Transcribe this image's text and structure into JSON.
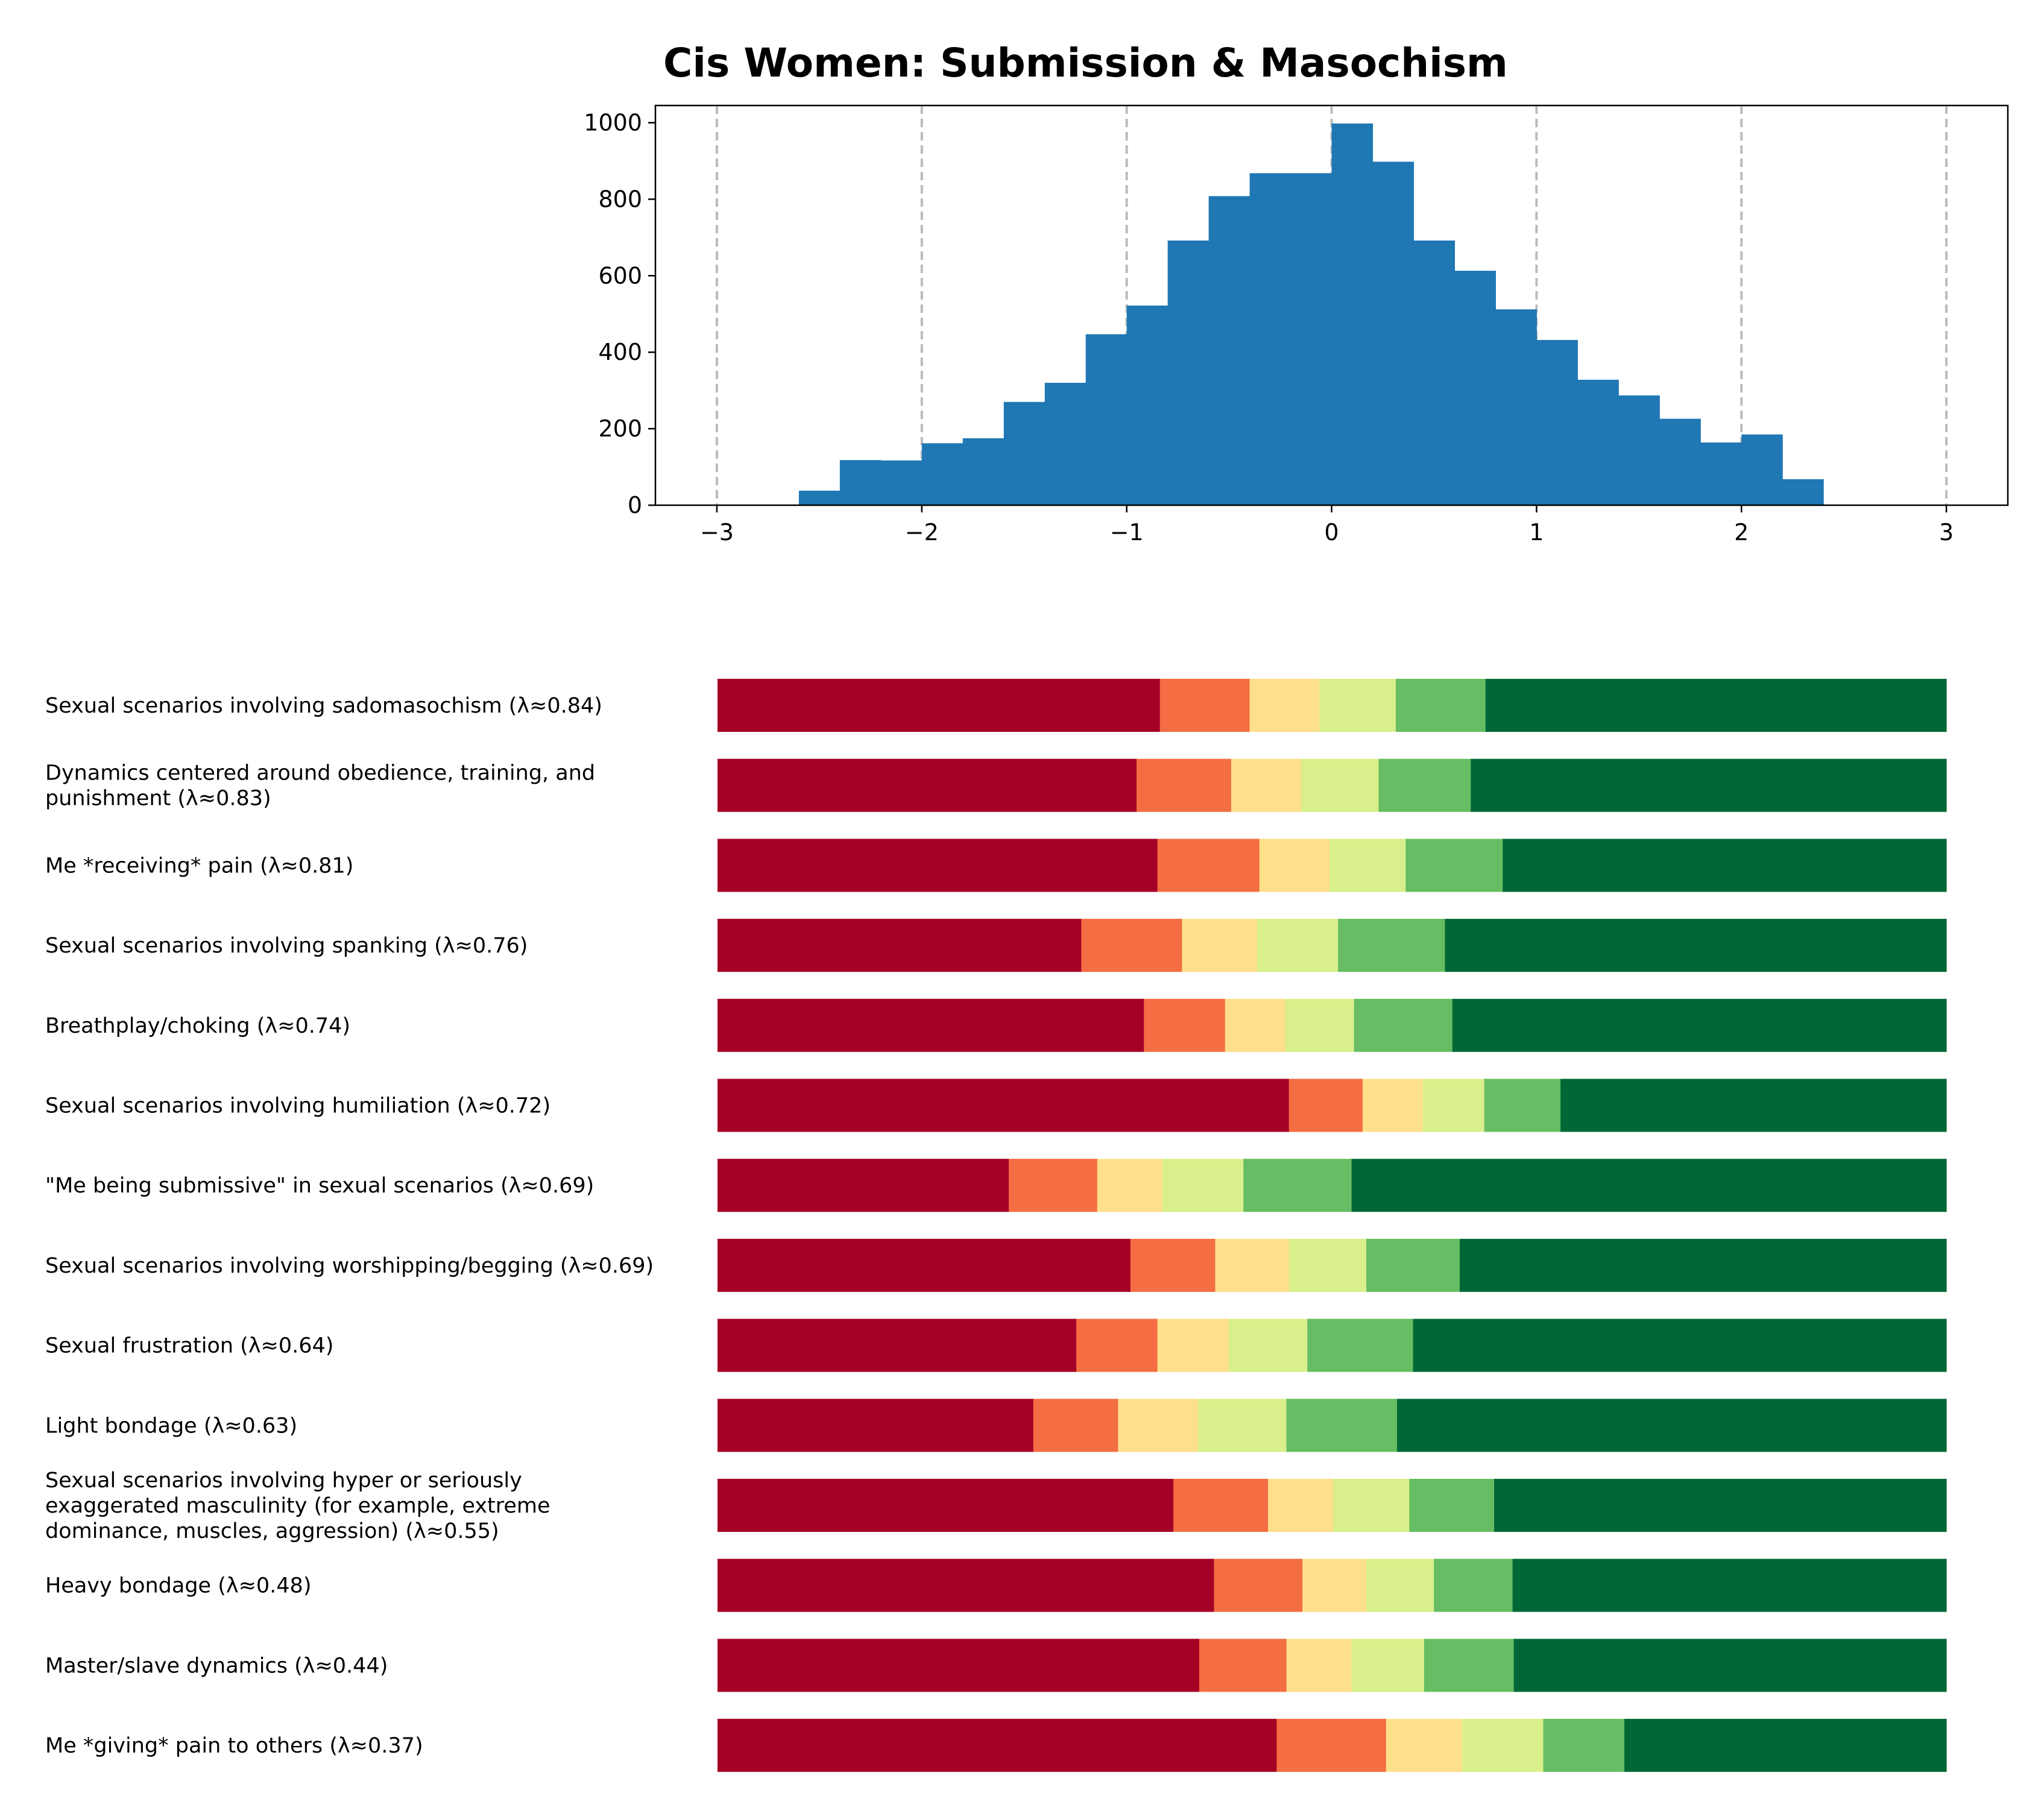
{
  "chart_data": [
    {
      "type": "bar",
      "title": "Cis Women: Submission & Masochism",
      "xlabel": "",
      "ylabel": "",
      "xlim": [
        -3.3,
        3.3
      ],
      "ylim": [
        0,
        1045
      ],
      "xticks": [
        -3,
        -2,
        -1,
        0,
        1,
        2,
        3
      ],
      "xtick_labels": [
        "−3",
        "−2",
        "−1",
        "0",
        "1",
        "2",
        "3"
      ],
      "yticks": [
        0,
        200,
        400,
        600,
        800,
        1000
      ],
      "ytick_labels": [
        "0",
        "200",
        "400",
        "600",
        "800",
        "1000"
      ],
      "grid": "vertical dashed at integer x",
      "bin_width": 0.2,
      "bin_starts": [
        -2.6,
        -2.4,
        -2.2,
        -2.0,
        -1.8,
        -1.6,
        -1.4,
        -1.2,
        -1.0,
        -0.8,
        -0.6,
        -0.4,
        -0.2,
        0.0,
        0.2,
        0.4,
        0.6,
        0.8,
        1.0,
        1.2,
        1.4,
        1.6,
        1.8,
        2.0,
        2.2
      ],
      "values": [
        38,
        118,
        117,
        162,
        175,
        270,
        320,
        447,
        522,
        692,
        808,
        868,
        868,
        998,
        898,
        692,
        613,
        512,
        432,
        328,
        287,
        226,
        164,
        185,
        68
      ],
      "colors": {
        "bar": "#1f77b4",
        "grid": "#bbbbbb"
      }
    },
    {
      "type": "bar",
      "orientation": "horizontal",
      "stacked": true,
      "normalized": true,
      "categories": [
        "Sexual scenarios involving sadomasochism (λ≈0.84)",
        "Dynamics centered around obedience, training, and\npunishment (λ≈0.83)",
        "Me *receiving* pain (λ≈0.81)",
        "Sexual scenarios involving spanking (λ≈0.76)",
        "Breathplay/choking (λ≈0.74)",
        "Sexual scenarios involving humiliation (λ≈0.72)",
        "\"Me being submissive\" in sexual scenarios (λ≈0.69)",
        "Sexual scenarios involving worshipping/begging (λ≈0.69)",
        "Sexual frustration (λ≈0.64)",
        "Light bondage (λ≈0.63)",
        "Sexual scenarios involving hyper or seriously\nexaggerated masculinity (for example, extreme\ndominance, muscles, aggression) (λ≈0.55)",
        "Heavy bondage (λ≈0.48)",
        "Master/slave dynamics (λ≈0.44)",
        "Me *giving* pain to others (λ≈0.37)"
      ],
      "segment_colors": [
        "#a50026",
        "#f46d43",
        "#fee08b",
        "#d9ef8b",
        "#66bd63",
        "#006837"
      ],
      "shares": [
        [
          0.36,
          0.073,
          0.057,
          0.062,
          0.073,
          0.375
        ],
        [
          0.341,
          0.077,
          0.057,
          0.063,
          0.075,
          0.387
        ],
        [
          0.358,
          0.083,
          0.057,
          0.062,
          0.079,
          0.361
        ],
        [
          0.296,
          0.082,
          0.061,
          0.066,
          0.087,
          0.408
        ],
        [
          0.347,
          0.066,
          0.049,
          0.056,
          0.08,
          0.402
        ],
        [
          0.465,
          0.06,
          0.049,
          0.05,
          0.062,
          0.314
        ],
        [
          0.237,
          0.072,
          0.053,
          0.066,
          0.088,
          0.484
        ],
        [
          0.336,
          0.069,
          0.06,
          0.063,
          0.076,
          0.396
        ],
        [
          0.292,
          0.066,
          0.058,
          0.064,
          0.086,
          0.434
        ],
        [
          0.257,
          0.069,
          0.065,
          0.072,
          0.09,
          0.447
        ],
        [
          0.371,
          0.077,
          0.053,
          0.062,
          0.069,
          0.368
        ],
        [
          0.404,
          0.072,
          0.052,
          0.055,
          0.064,
          0.353
        ],
        [
          0.392,
          0.071,
          0.053,
          0.059,
          0.073,
          0.352
        ],
        [
          0.455,
          0.089,
          0.062,
          0.066,
          0.066,
          0.262
        ]
      ]
    }
  ]
}
